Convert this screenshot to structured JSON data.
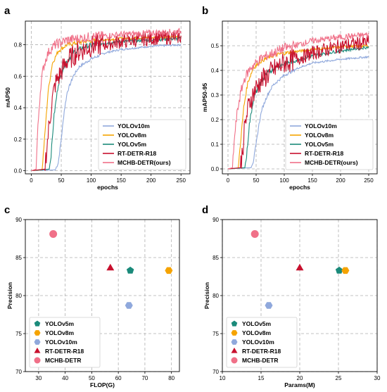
{
  "chart_data": [
    {
      "panel": "a",
      "type": "line",
      "xlabel": "epochs",
      "ylabel": "mAP50",
      "xlim": [
        -10,
        265
      ],
      "ylim": [
        -0.02,
        0.95
      ],
      "xticks": [
        0,
        50,
        100,
        150,
        200,
        250
      ],
      "yticks": [
        0.0,
        0.2,
        0.4,
        0.6,
        0.8
      ],
      "grid": true,
      "legend_position": "bottom-right",
      "series": [
        {
          "name": "YOLOv10m",
          "color": "#8fa8dc",
          "x": [
            0,
            40,
            45,
            50,
            55,
            60,
            70,
            80,
            100,
            125,
            150,
            200,
            250
          ],
          "y": [
            0,
            0.005,
            0.05,
            0.2,
            0.38,
            0.5,
            0.6,
            0.66,
            0.71,
            0.75,
            0.77,
            0.79,
            0.8
          ]
        },
        {
          "name": "YOLOv8m",
          "color": "#f5a300",
          "x": [
            0,
            18,
            22,
            28,
            35,
            45,
            60,
            80,
            100,
            150,
            200,
            250
          ],
          "y": [
            0,
            0.005,
            0.2,
            0.5,
            0.68,
            0.76,
            0.8,
            0.815,
            0.825,
            0.84,
            0.845,
            0.85
          ]
        },
        {
          "name": "YOLOv5m",
          "color": "#1a8a7a",
          "x": [
            0,
            30,
            33,
            38,
            45,
            55,
            70,
            90,
            120,
            150,
            200,
            250
          ],
          "y": [
            0,
            0.01,
            0.1,
            0.35,
            0.55,
            0.67,
            0.75,
            0.79,
            0.81,
            0.82,
            0.83,
            0.84
          ]
        },
        {
          "name": "RT-DETR-R18",
          "color": "#c8102e",
          "x": [
            0,
            22,
            26,
            30,
            35,
            40,
            50,
            60,
            80,
            100,
            150,
            200,
            250
          ],
          "y": [
            0,
            0.01,
            0.15,
            0.3,
            0.45,
            0.55,
            0.63,
            0.7,
            0.76,
            0.79,
            0.82,
            0.84,
            0.85
          ]
        },
        {
          "name": "MCHB-DETR(ours)",
          "color": "#f07088",
          "x": [
            0,
            8,
            10,
            13,
            16,
            20,
            25,
            30,
            40,
            60,
            100,
            150,
            200,
            250
          ],
          "y": [
            0,
            0.01,
            0.2,
            0.4,
            0.55,
            0.65,
            0.72,
            0.76,
            0.8,
            0.83,
            0.85,
            0.865,
            0.875,
            0.885
          ]
        }
      ]
    },
    {
      "panel": "b",
      "type": "line",
      "xlabel": "epochs",
      "ylabel": "mAP50-95",
      "xlim": [
        -10,
        265
      ],
      "ylim": [
        -0.02,
        0.6
      ],
      "xticks": [
        0,
        50,
        100,
        150,
        200,
        250
      ],
      "yticks": [
        0.0,
        0.1,
        0.2,
        0.3,
        0.4,
        0.5
      ],
      "grid": true,
      "legend_position": "bottom-right",
      "series": [
        {
          "name": "YOLOv10m",
          "color": "#8fa8dc",
          "x": [
            0,
            40,
            45,
            50,
            55,
            60,
            70,
            80,
            100,
            125,
            150,
            200,
            250
          ],
          "y": [
            0,
            0.005,
            0.03,
            0.1,
            0.18,
            0.24,
            0.3,
            0.34,
            0.38,
            0.41,
            0.43,
            0.445,
            0.455
          ]
        },
        {
          "name": "YOLOv8m",
          "color": "#f5a300",
          "x": [
            0,
            18,
            22,
            28,
            35,
            45,
            60,
            80,
            100,
            150,
            200,
            250
          ],
          "y": [
            0,
            0.003,
            0.1,
            0.25,
            0.35,
            0.41,
            0.44,
            0.46,
            0.47,
            0.485,
            0.495,
            0.5
          ]
        },
        {
          "name": "YOLOv5m",
          "color": "#1a8a7a",
          "x": [
            0,
            30,
            33,
            38,
            45,
            55,
            70,
            90,
            120,
            150,
            200,
            250
          ],
          "y": [
            0,
            0.005,
            0.05,
            0.18,
            0.28,
            0.34,
            0.39,
            0.42,
            0.44,
            0.46,
            0.48,
            0.495
          ]
        },
        {
          "name": "RT-DETR-R18",
          "color": "#c8102e",
          "x": [
            0,
            22,
            26,
            30,
            35,
            40,
            50,
            60,
            80,
            100,
            150,
            200,
            250
          ],
          "y": [
            0,
            0.005,
            0.08,
            0.17,
            0.24,
            0.28,
            0.33,
            0.36,
            0.4,
            0.43,
            0.47,
            0.5,
            0.515
          ]
        },
        {
          "name": "MCHB-DETR(ours)",
          "color": "#f07088",
          "x": [
            0,
            8,
            10,
            13,
            16,
            20,
            25,
            30,
            40,
            60,
            100,
            150,
            200,
            250
          ],
          "y": [
            0,
            0.005,
            0.08,
            0.16,
            0.22,
            0.28,
            0.33,
            0.37,
            0.41,
            0.45,
            0.49,
            0.52,
            0.535,
            0.545
          ]
        }
      ]
    },
    {
      "panel": "c",
      "type": "scatter",
      "xlabel": "FLOP(G)",
      "ylabel": "Precision",
      "xlim": [
        25,
        83
      ],
      "ylim": [
        70,
        90
      ],
      "xticks": [
        30,
        40,
        50,
        60,
        70,
        80
      ],
      "yticks": [
        70,
        75,
        80,
        85,
        90
      ],
      "grid": true,
      "legend_position": "bottom-left",
      "points": [
        {
          "name": "YOLOv5m",
          "x": 64.5,
          "y": 83.3,
          "color": "#1a8a7a",
          "marker": "pentagon"
        },
        {
          "name": "YOLOv8m",
          "x": 79,
          "y": 83.3,
          "color": "#f5a300",
          "marker": "hexagon"
        },
        {
          "name": "YOLOv10m",
          "x": 64,
          "y": 78.7,
          "color": "#8fa8dc",
          "marker": "hexagon"
        },
        {
          "name": "RT-DETR-R18",
          "x": 57,
          "y": 83.6,
          "color": "#c8102e",
          "marker": "triangle"
        },
        {
          "name": "MCHB-DETR",
          "x": 35.5,
          "y": 88.1,
          "color": "#f07088",
          "marker": "circle"
        }
      ]
    },
    {
      "panel": "d",
      "type": "scatter",
      "xlabel": "Params(M)",
      "ylabel": "Precision",
      "xlim": [
        10,
        30
      ],
      "ylim": [
        70,
        90
      ],
      "xticks": [
        10,
        15,
        20,
        25,
        30
      ],
      "yticks": [
        70,
        75,
        80,
        85,
        90
      ],
      "grid": true,
      "legend_position": "bottom-left",
      "points": [
        {
          "name": "YOLOv5m",
          "x": 25.1,
          "y": 83.3,
          "color": "#1a8a7a",
          "marker": "pentagon"
        },
        {
          "name": "YOLOv8m",
          "x": 25.9,
          "y": 83.3,
          "color": "#f5a300",
          "marker": "hexagon"
        },
        {
          "name": "YOLOv10m",
          "x": 16.0,
          "y": 78.7,
          "color": "#8fa8dc",
          "marker": "hexagon"
        },
        {
          "name": "RT-DETR-R18",
          "x": 20.0,
          "y": 83.6,
          "color": "#c8102e",
          "marker": "triangle"
        },
        {
          "name": "MCHB-DETR",
          "x": 14.2,
          "y": 88.1,
          "color": "#f07088",
          "marker": "circle"
        }
      ]
    }
  ]
}
